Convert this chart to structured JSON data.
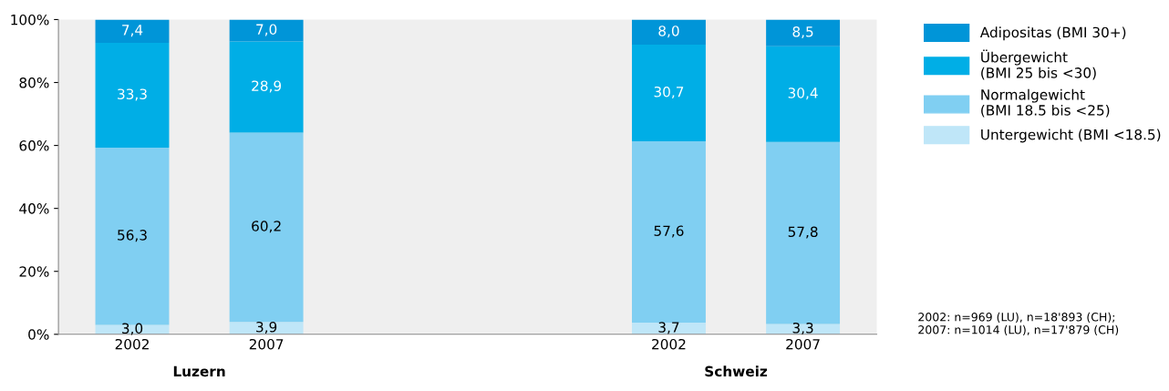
{
  "chart_data": {
    "type": "bar",
    "stacked": true,
    "categories": [
      "2002",
      "2007",
      null,
      null,
      "2002",
      "2007"
    ],
    "series": [
      {
        "name": "Untergewicht (BMI <18.5)",
        "color": "#bfe6f8",
        "values": [
          3.0,
          3.9,
          null,
          null,
          3.7,
          3.3
        ],
        "value_labels": [
          "3,0",
          "3,9",
          null,
          null,
          "3,7",
          "3,3"
        ]
      },
      {
        "name": "Normalgewicht\n(BMI 18.5 bis <25)",
        "color": "#80cff2",
        "values": [
          56.3,
          60.2,
          null,
          null,
          57.6,
          57.8
        ],
        "value_labels": [
          "56,3",
          "60,2",
          null,
          null,
          "57,6",
          "57,8"
        ]
      },
      {
        "name": "Übergewicht\n(BMI 25 bis <30)",
        "color": "#00aee6",
        "values": [
          33.3,
          28.9,
          null,
          null,
          30.7,
          30.4
        ],
        "value_labels": [
          "33,3",
          "28,9",
          null,
          null,
          "30,7",
          "30,4"
        ]
      },
      {
        "name": "Adipositas (BMI 30+)",
        "color": "#0095d8",
        "values": [
          7.4,
          7.0,
          null,
          null,
          8.0,
          8.5
        ],
        "value_labels": [
          "7,4",
          "7,0",
          null,
          null,
          "8,0",
          "8,5"
        ]
      }
    ],
    "ylim": [
      0,
      100
    ],
    "yticks": [
      {
        "value": 0,
        "label": "0%"
      },
      {
        "value": 20,
        "label": "20%"
      },
      {
        "value": 40,
        "label": "40%"
      },
      {
        "value": 60,
        "label": "60%"
      },
      {
        "value": 80,
        "label": "80%"
      },
      {
        "value": 100,
        "label": "100%"
      }
    ],
    "grid": false,
    "legend": "top right",
    "annotations": [
      "Luzern",
      "Schweiz",
      "2002: n=969 (LU), n=18'893 (CH);\n2007: n=1014 (LU), n=17'879 (CH)"
    ]
  }
}
